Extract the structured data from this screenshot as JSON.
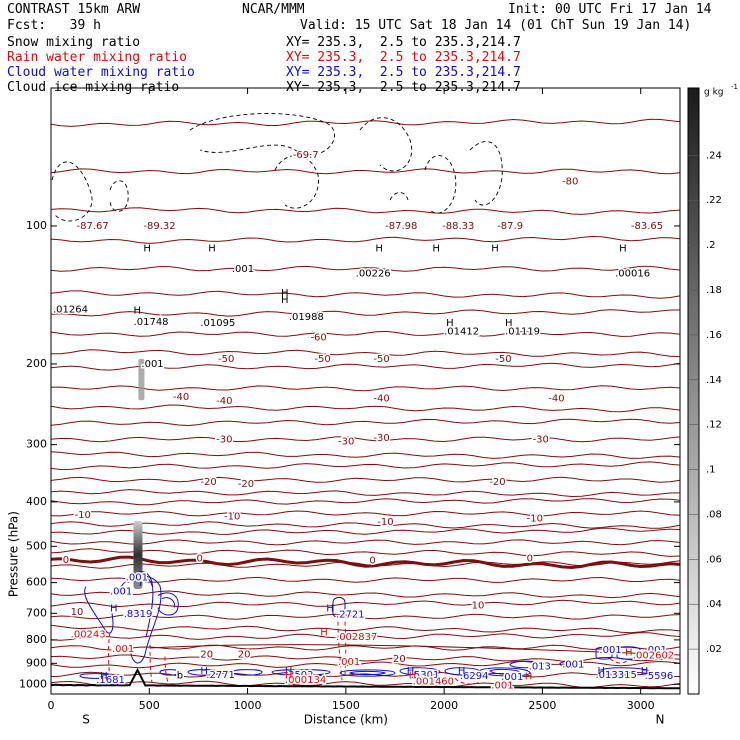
{
  "header": {
    "title": "CONTRAST 15km ARW",
    "center": "NCAR/MMM",
    "init": "Init: 00 UTC Fri 17 Jan 14",
    "fcst": "Fcst:   39 h",
    "valid": "Valid: 15 UTC Sat 18 Jan 14 (01 ChT Sun 19 Jan 14)"
  },
  "fields": [
    {
      "name": "Snow mixing ratio",
      "xy": "XY= 235.3,  2.5 to 235.3,214.7",
      "color": "#000000"
    },
    {
      "name": "Rain water mixing ratio",
      "xy": "XY= 235.3,  2.5 to 235.3,214.7",
      "color": "#d01010"
    },
    {
      "name": "Cloud water mixing ratio",
      "xy": "XY= 235.3,  2.5 to 235.3,214.7",
      "color": "#1010c0"
    },
    {
      "name": "Cloud ice mixing ratio",
      "xy": "XY= 235.3,  2.5 to 235.3,214.7",
      "color": "#000000"
    }
  ],
  "colors": {
    "temperature": "#7a1010",
    "freezing": "#7a1010",
    "terrain": "#000000",
    "rain": "#d01010",
    "cloudwater": "#1010c0"
  },
  "chart_data": {
    "type": "contour-cross-section",
    "xlabel": "Distance (km)",
    "ylabel": "Pressure (hPa)",
    "xlim": [
      0,
      3200
    ],
    "ylim": [
      1050,
      50
    ],
    "y_scale": "log",
    "x_ticks": [
      0,
      500,
      1000,
      1500,
      2000,
      2500,
      3000
    ],
    "y_ticks": [
      100,
      200,
      300,
      400,
      500,
      600,
      700,
      800,
      900,
      1000
    ],
    "x_end_labels": {
      "left": "S",
      "right": "N"
    },
    "colorbar": {
      "unit": "g kg",
      "unit_exp": "-1",
      "ticks": [
        ".02",
        ".04",
        ".06",
        ".08",
        ".1",
        ".12",
        ".14",
        ".16",
        ".18",
        ".2",
        ".22",
        ".24"
      ],
      "range": [
        0,
        0.27
      ]
    },
    "isotherm_labels": [
      {
        "text": "-87.67",
        "x": 130,
        "p": 100
      },
      {
        "text": "-89.32",
        "x": 470,
        "p": 100
      },
      {
        "text": "-69.7",
        "x": 1230,
        "p": 70
      },
      {
        "text": "-87.98",
        "x": 1700,
        "p": 100
      },
      {
        "text": "-88.33",
        "x": 1990,
        "p": 100
      },
      {
        "text": "-87.9",
        "x": 2270,
        "p": 100
      },
      {
        "text": "-80",
        "x": 2600,
        "p": 80
      },
      {
        "text": "-83.65",
        "x": 2950,
        "p": 100
      },
      {
        "text": "-60",
        "x": 1320,
        "p": 175
      },
      {
        "text": "-50",
        "x": 1340,
        "p": 195
      },
      {
        "text": "-50",
        "x": 1640,
        "p": 195
      },
      {
        "text": "-50",
        "x": 2260,
        "p": 195
      },
      {
        "text": "-50",
        "x": 850,
        "p": 195
      },
      {
        "text": "-40",
        "x": 620,
        "p": 236
      },
      {
        "text": "-40",
        "x": 840,
        "p": 241
      },
      {
        "text": "-40",
        "x": 1640,
        "p": 238
      },
      {
        "text": "-40",
        "x": 2530,
        "p": 238
      },
      {
        "text": "-30",
        "x": 840,
        "p": 292
      },
      {
        "text": "-30",
        "x": 1460,
        "p": 295
      },
      {
        "text": "-30",
        "x": 1640,
        "p": 290
      },
      {
        "text": "-30",
        "x": 2450,
        "p": 292
      },
      {
        "text": "-20",
        "x": 760,
        "p": 362
      },
      {
        "text": "-20",
        "x": 950,
        "p": 366
      },
      {
        "text": "-20",
        "x": 2230,
        "p": 362
      },
      {
        "text": "-10",
        "x": 120,
        "p": 427
      },
      {
        "text": "-10",
        "x": 880,
        "p": 430
      },
      {
        "text": "-10",
        "x": 1660,
        "p": 442
      },
      {
        "text": "-10",
        "x": 2420,
        "p": 435
      },
      {
        "text": "0",
        "x": 60,
        "p": 535
      },
      {
        "text": "0",
        "x": 740,
        "p": 532
      },
      {
        "text": "0",
        "x": 1620,
        "p": 537
      },
      {
        "text": "0",
        "x": 2420,
        "p": 532
      },
      {
        "text": "10",
        "x": 100,
        "p": 695
      },
      {
        "text": "10",
        "x": 2140,
        "p": 673
      },
      {
        "text": "20",
        "x": 760,
        "p": 860
      },
      {
        "text": "20",
        "x": 950,
        "p": 860
      },
      {
        "text": "20",
        "x": 1740,
        "p": 880
      }
    ],
    "cloud_ice_labels": [
      {
        "text": ".001",
        "x": 920,
        "p": 124
      },
      {
        "text": ".00226",
        "x": 1550,
        "p": 127
      },
      {
        "text": ".00016",
        "x": 2870,
        "p": 127
      },
      {
        "text": ".01264",
        "x": 10,
        "p": 152
      },
      {
        "text": ".01748",
        "x": 420,
        "p": 162
      },
      {
        "text": ".01095",
        "x": 760,
        "p": 163
      },
      {
        "text": ".01988",
        "x": 1210,
        "p": 158
      },
      {
        "text": ".01412",
        "x": 2000,
        "p": 170
      },
      {
        "text": ".01119",
        "x": 2310,
        "p": 170
      },
      {
        "text": ".001",
        "x": 460,
        "p": 200
      }
    ],
    "cloud_ice_highs": [
      {
        "x": 470,
        "p": 112
      },
      {
        "x": 800,
        "p": 112
      },
      {
        "x": 1170,
        "p": 140
      },
      {
        "x": 1650,
        "p": 112
      },
      {
        "x": 1940,
        "p": 112
      },
      {
        "x": 2240,
        "p": 112
      },
      {
        "x": 2890,
        "p": 112
      },
      {
        "x": 420,
        "p": 153
      },
      {
        "x": 1170,
        "p": 145
      },
      {
        "x": 2010,
        "p": 163
      },
      {
        "x": 2310,
        "p": 163
      }
    ],
    "cloud_water_labels": [
      {
        "text": ".001",
        "x": 300,
        "p": 628
      },
      {
        "text": ".001",
        "x": 380,
        "p": 585
      },
      {
        "text": ".8319",
        "x": 370,
        "p": 702
      },
      {
        "text": ".2721",
        "x": 1450,
        "p": 705
      },
      {
        "text": ".001",
        "x": 2790,
        "p": 842
      },
      {
        "text": ".001",
        "x": 3020,
        "p": 842
      },
      {
        "text": ".1681",
        "x": 230,
        "p": 978
      },
      {
        "text": ".2771",
        "x": 790,
        "p": 955
      },
      {
        "text": ".3502",
        "x": 1190,
        "p": 955
      },
      {
        "text": ".5301",
        "x": 1830,
        "p": 955
      },
      {
        "text": ".6294",
        "x": 2080,
        "p": 960
      },
      {
        "text": ".001",
        "x": 2290,
        "p": 965
      },
      {
        "text": ".013",
        "x": 2430,
        "p": 915
      },
      {
        "text": ".001",
        "x": 2600,
        "p": 905
      },
      {
        "text": ".013315",
        "x": 2770,
        "p": 955
      },
      {
        "text": ".5596",
        "x": 3020,
        "p": 960
      }
    ],
    "cloud_water_highs": [
      {
        "x": 300,
        "p": 683
      },
      {
        "x": 1400,
        "p": 683
      },
      {
        "x": 760,
        "p": 935
      },
      {
        "x": 1190,
        "p": 935
      },
      {
        "x": 1810,
        "p": 935
      },
      {
        "x": 2070,
        "p": 935
      },
      {
        "x": 2780,
        "p": 935
      },
      {
        "x": 3000,
        "p": 935
      },
      {
        "x": 250,
        "p": 960
      }
    ],
    "rain_labels": [
      {
        "text": ".00243",
        "x": 100,
        "p": 778
      },
      {
        "text": ".002837",
        "x": 1450,
        "p": 788
      },
      {
        "text": ".001",
        "x": 1460,
        "p": 893
      },
      {
        "text": ".002602",
        "x": 2960,
        "p": 865
      },
      {
        "text": ".000134",
        "x": 1190,
        "p": 978
      },
      {
        "text": ".001460",
        "x": 1840,
        "p": 985
      },
      {
        "text": ".001",
        "x": 2240,
        "p": 1005
      },
      {
        "text": ".001",
        "x": 310,
        "p": 838
      }
    ],
    "rain_highs": [
      {
        "x": 1370,
        "p": 770
      },
      {
        "x": 2920,
        "p": 852
      },
      {
        "x": 1190,
        "p": 958
      },
      {
        "x": 1820,
        "p": 958
      },
      {
        "x": 2410,
        "p": 962
      }
    ],
    "snow_labels": [
      {
        "text": "b",
        "x": 640,
        "p": 958
      }
    ]
  }
}
